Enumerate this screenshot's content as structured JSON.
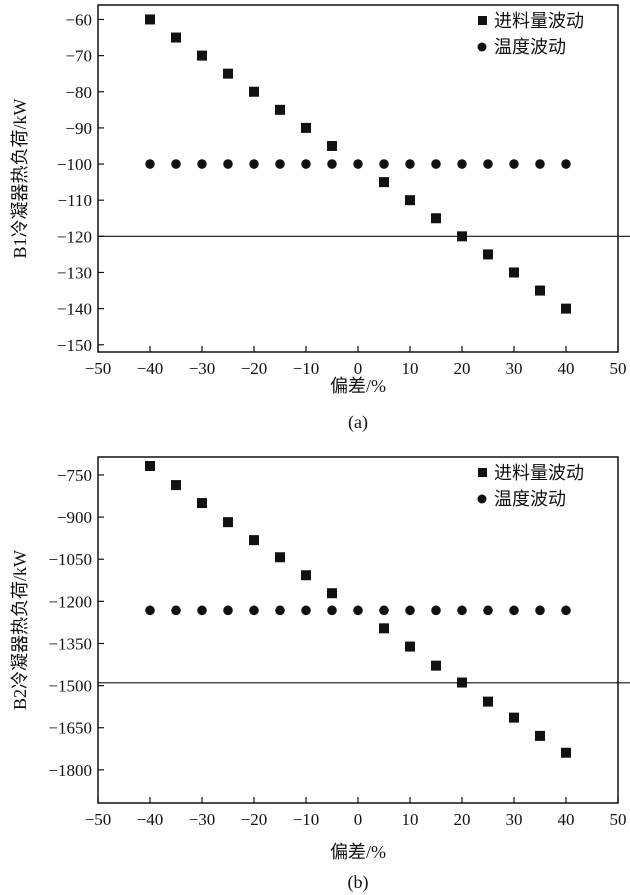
{
  "chart_data": [
    {
      "type": "scatter",
      "panel_label": "(a)",
      "xlabel": "偏差/%",
      "ylabel": "B1冷凝器热负荷/kW",
      "xlim": [
        -50,
        50
      ],
      "ylim": [
        -152,
        -56
      ],
      "xticks": [
        -50,
        -40,
        -30,
        -20,
        -10,
        0,
        10,
        20,
        30,
        40,
        50
      ],
      "yticks": [
        -60,
        -70,
        -80,
        -90,
        -100,
        -110,
        -120,
        -130,
        -140,
        -150
      ],
      "legend_position": "top-right",
      "reference_line_y": -120,
      "series": [
        {
          "name": "进料量波动",
          "marker": "square",
          "x": [
            -40,
            -35,
            -30,
            -25,
            -20,
            -15,
            -10,
            -5,
            5,
            10,
            15,
            20,
            25,
            30,
            35,
            40
          ],
          "y": [
            -60,
            -65,
            -70,
            -75,
            -80,
            -85,
            -90,
            -95,
            -105,
            -110,
            -115,
            -120,
            -125,
            -130,
            -135,
            -140
          ]
        },
        {
          "name": "温度波动",
          "marker": "circle",
          "x": [
            -40,
            -35,
            -30,
            -25,
            -20,
            -15,
            -10,
            -5,
            0,
            5,
            10,
            15,
            20,
            25,
            30,
            35,
            40
          ],
          "y": [
            -100,
            -100,
            -100,
            -100,
            -100,
            -100,
            -100,
            -100,
            -100,
            -100,
            -100,
            -100,
            -100,
            -100,
            -100,
            -100,
            -100
          ]
        }
      ]
    },
    {
      "type": "scatter",
      "panel_label": "(b)",
      "xlabel": "偏差/%",
      "ylabel": "B2冷凝器热负荷/kW",
      "xlim": [
        -50,
        50
      ],
      "ylim": [
        -1918,
        -686
      ],
      "xticks": [
        -50,
        -40,
        -30,
        -20,
        -10,
        0,
        10,
        20,
        30,
        40,
        50
      ],
      "yticks": [
        -750,
        -900,
        -1050,
        -1200,
        -1350,
        -1500,
        -1650,
        -1800
      ],
      "legend_position": "top-right",
      "reference_line_y": -1490,
      "series": [
        {
          "name": "进料量波动",
          "marker": "square",
          "x": [
            -40,
            -35,
            -30,
            -25,
            -20,
            -15,
            -10,
            -5,
            5,
            10,
            15,
            20,
            25,
            30,
            35,
            40
          ],
          "y": [
            -718,
            -786,
            -850,
            -918,
            -982,
            -1043,
            -1107,
            -1171,
            -1296,
            -1361,
            -1429,
            -1489,
            -1557,
            -1614,
            -1679,
            -1739
          ]
        },
        {
          "name": "温度波动",
          "marker": "circle",
          "x": [
            -40,
            -35,
            -30,
            -25,
            -20,
            -15,
            -10,
            -5,
            0,
            5,
            10,
            15,
            20,
            25,
            30,
            35,
            40
          ],
          "y": [
            -1232,
            -1232,
            -1232,
            -1232,
            -1232,
            -1232,
            -1232,
            -1232,
            -1232,
            -1232,
            -1232,
            -1232,
            -1232,
            -1232,
            -1232,
            -1232,
            -1232
          ]
        }
      ]
    }
  ]
}
